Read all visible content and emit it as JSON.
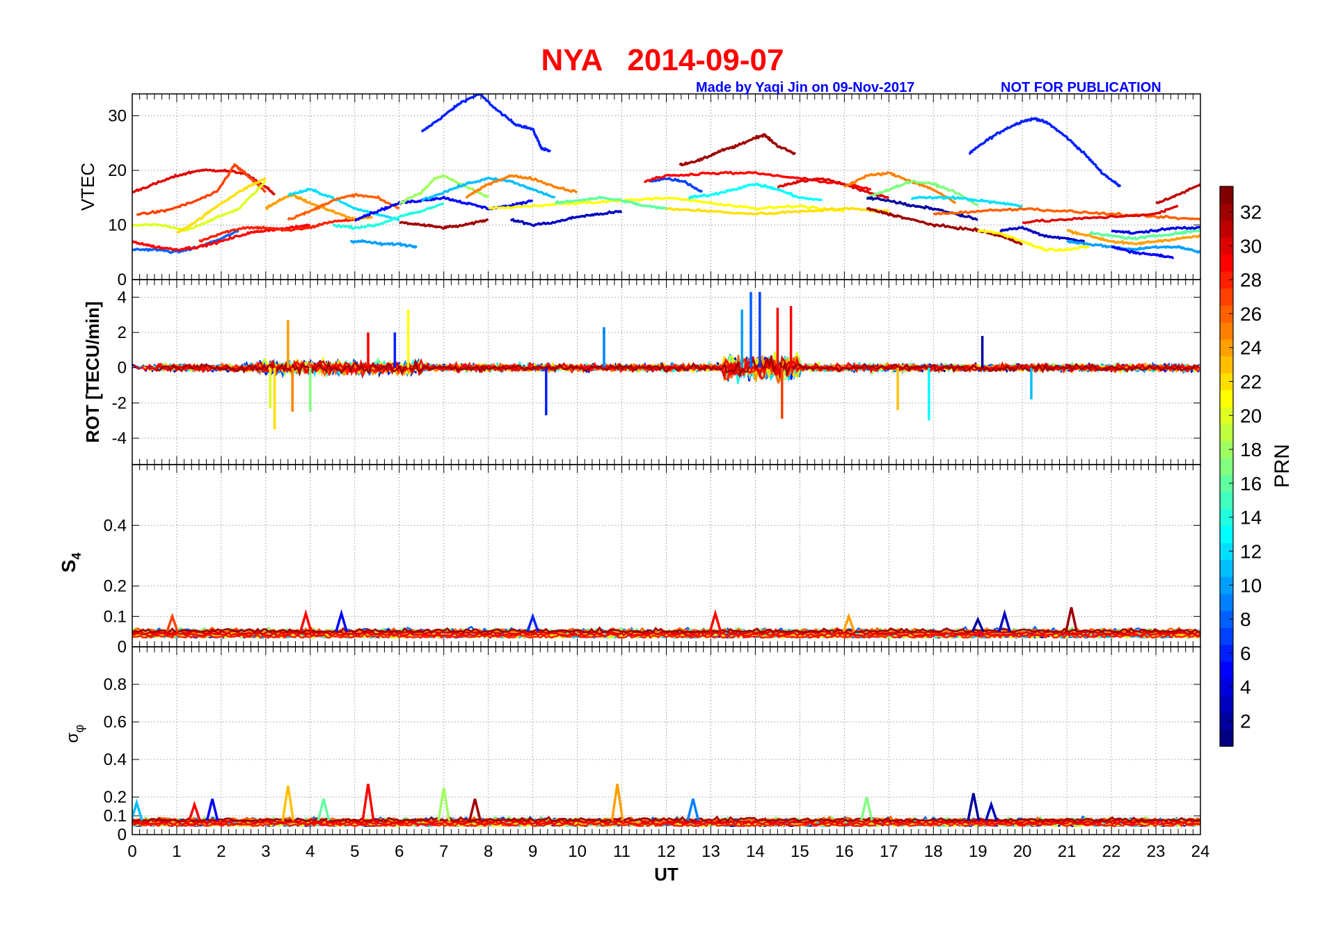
{
  "title": "NYA   2014-09-07",
  "credit": "Made by Yaqi Jin on 09-Nov-2017",
  "disclaimer": "NOT FOR PUBLICATION",
  "xlabel": "UT",
  "colorbar": {
    "label": "PRN",
    "ticks": [
      "2",
      "4",
      "6",
      "8",
      "10",
      "12",
      "14",
      "16",
      "18",
      "20",
      "22",
      "24",
      "26",
      "28",
      "30",
      "32"
    ],
    "range": [
      1,
      33
    ],
    "colormap": "jet"
  },
  "chart_data": [
    {
      "type": "line",
      "panel": "VTEC",
      "ylabel": "VTEC",
      "xlim": [
        0,
        24
      ],
      "ylim": [
        0,
        34
      ],
      "xticks": [
        "0",
        "1",
        "2",
        "3",
        "4",
        "5",
        "6",
        "7",
        "8",
        "9",
        "10",
        "11",
        "12",
        "13",
        "14",
        "15",
        "16",
        "17",
        "18",
        "19",
        "20",
        "21",
        "22",
        "23",
        "24"
      ],
      "yticks": [
        "0",
        "10",
        "20",
        "30"
      ],
      "grid": true,
      "series": [
        {
          "prn": 6,
          "x": [
            6.5,
            7.0,
            7.4,
            7.8,
            8.2,
            8.6,
            9.0,
            9.2,
            9.4
          ],
          "y": [
            27,
            30,
            32.5,
            34,
            31,
            28.5,
            27.5,
            24,
            23.5
          ]
        },
        {
          "prn": 6,
          "x": [
            18.8,
            19.2,
            19.6,
            20.0,
            20.3,
            20.6,
            21.0,
            21.4,
            21.8,
            22.2
          ],
          "y": [
            23,
            25.5,
            27.5,
            29,
            29.5,
            28.5,
            26,
            23,
            19.5,
            17
          ]
        },
        {
          "prn": 32,
          "x": [
            12.3,
            12.8,
            13.2,
            13.6,
            14.0,
            14.2,
            14.5,
            14.9
          ],
          "y": [
            21,
            22,
            23.5,
            24.5,
            26,
            26.5,
            24.5,
            23
          ]
        },
        {
          "prn": 30,
          "x": [
            0.0,
            0.5,
            1.0,
            1.5,
            2.0,
            2.5,
            3.0,
            3.2
          ],
          "y": [
            16,
            17.5,
            19,
            20,
            20,
            19.5,
            17,
            15.5
          ]
        },
        {
          "prn": 27,
          "x": [
            0.1,
            0.7,
            1.3,
            1.9,
            2.3,
            2.6,
            3.0
          ],
          "y": [
            12,
            12.5,
            14,
            16,
            21,
            19,
            16
          ]
        },
        {
          "prn": 20,
          "x": [
            0.0,
            0.6,
            1.2,
            1.8,
            2.4,
            3.0
          ],
          "y": [
            10,
            10,
            9,
            11,
            13,
            18
          ]
        },
        {
          "prn": 22,
          "x": [
            1.0,
            1.5,
            2.0,
            2.6,
            3.0
          ],
          "y": [
            8.5,
            11,
            14,
            17,
            18.5
          ]
        },
        {
          "prn": 8,
          "x": [
            0.0,
            0.5,
            1.0,
            1.5,
            2.0,
            2.4
          ],
          "y": [
            5.5,
            5.5,
            5,
            6,
            7.5,
            9
          ]
        },
        {
          "prn": 29,
          "x": [
            0.0,
            0.5,
            1.0,
            1.5,
            2.0,
            2.6,
            3.0,
            3.6,
            4.0
          ],
          "y": [
            7,
            6,
            5.5,
            6,
            7,
            8.5,
            9,
            9.5,
            10
          ]
        },
        {
          "prn": 28,
          "x": [
            1.5,
            2.0,
            2.5,
            3.0,
            3.5,
            4.0,
            4.4,
            5.0
          ],
          "y": [
            7,
            8.5,
            9.5,
            9.5,
            9,
            9.5,
            10.5,
            11
          ]
        },
        {
          "prn": 24,
          "x": [
            3.0,
            3.3,
            3.6,
            4.0,
            4.5,
            5.0,
            5.4
          ],
          "y": [
            13,
            14.5,
            15.5,
            14,
            12.5,
            11,
            11.5
          ]
        },
        {
          "prn": 12,
          "x": [
            3.5,
            4.0,
            4.5,
            5.0,
            5.5,
            6.0
          ],
          "y": [
            15.5,
            16.5,
            15,
            13,
            12,
            11
          ]
        },
        {
          "prn": 26,
          "x": [
            3.5,
            4.0,
            4.5,
            5.0,
            5.5,
            6.0
          ],
          "y": [
            11,
            12.5,
            14.5,
            15.5,
            15,
            13
          ]
        },
        {
          "prn": 14,
          "x": [
            4.5,
            5.0,
            5.5,
            6.0,
            6.5,
            7.0
          ],
          "y": [
            10,
            9.5,
            10,
            11.5,
            12.5,
            14
          ]
        },
        {
          "prn": 10,
          "x": [
            4.9,
            5.2,
            5.6,
            6.0,
            6.4
          ],
          "y": [
            7,
            7,
            6.5,
            6.5,
            6
          ]
        },
        {
          "prn": 5,
          "x": [
            5.0,
            5.5,
            6.0,
            6.5,
            7.0,
            7.5,
            8.0,
            8.5,
            9.0
          ],
          "y": [
            11,
            12.5,
            14,
            14.5,
            15,
            14,
            13,
            13.5,
            14.5
          ]
        },
        {
          "prn": 18,
          "x": [
            6.0,
            6.5,
            6.8,
            7.0,
            7.5,
            8.0
          ],
          "y": [
            14,
            16,
            18.5,
            19,
            17,
            15
          ]
        },
        {
          "prn": 32,
          "x": [
            6.0,
            6.5,
            7.0,
            7.5,
            8.0
          ],
          "y": [
            10.5,
            10,
            9.5,
            10,
            11
          ]
        },
        {
          "prn": 11,
          "x": [
            6.5,
            7.0,
            7.5,
            8.0,
            8.5,
            9.0,
            9.5
          ],
          "y": [
            14.5,
            16,
            17.5,
            18.5,
            18,
            16.5,
            15
          ]
        },
        {
          "prn": 25,
          "x": [
            7.5,
            8.0,
            8.5,
            9.0,
            9.5,
            10.0
          ],
          "y": [
            15,
            17.5,
            19,
            18.5,
            17,
            16
          ]
        },
        {
          "prn": 3,
          "x": [
            8.5,
            9.0,
            9.5,
            10.0,
            10.5,
            11.0
          ],
          "y": [
            11,
            10,
            10.5,
            11.5,
            12,
            12.5
          ]
        },
        {
          "prn": 21,
          "x": [
            8.0,
            9.0,
            10.0,
            11.0,
            12.0,
            13.0,
            14.0,
            15.0,
            16.0
          ],
          "y": [
            13,
            13.5,
            14,
            14.5,
            15,
            14,
            13,
            13.5,
            12.5
          ]
        },
        {
          "prn": 16,
          "x": [
            9.5,
            10.0,
            10.5,
            11.0,
            11.5,
            12.0
          ],
          "y": [
            14,
            14.5,
            15,
            14.5,
            13.5,
            13
          ]
        },
        {
          "prn": 7,
          "x": [
            11.6,
            12.0,
            12.4,
            12.8
          ],
          "y": [
            18,
            18.5,
            18,
            16
          ]
        },
        {
          "prn": 29,
          "x": [
            11.5,
            12.0,
            13.0,
            14.0,
            15.0,
            16.0,
            16.6
          ],
          "y": [
            18,
            19,
            19.5,
            19.5,
            18.5,
            17.5,
            16.5
          ]
        },
        {
          "prn": 13,
          "x": [
            12.5,
            13.0,
            13.5,
            14.0,
            14.5,
            15.0,
            15.5
          ],
          "y": [
            15,
            15.5,
            16.5,
            17.5,
            16.5,
            15,
            14.5
          ]
        },
        {
          "prn": 22,
          "x": [
            12.0,
            13.0,
            14.0,
            15.0,
            16.0,
            17.0
          ],
          "y": [
            13,
            12.5,
            12,
            12.5,
            13,
            12.5
          ]
        },
        {
          "prn": 30,
          "x": [
            14.5,
            15.0,
            15.5,
            16.0,
            16.5,
            17.0
          ],
          "y": [
            17,
            18,
            18.5,
            17.5,
            16,
            15
          ]
        },
        {
          "prn": 25,
          "x": [
            16.0,
            16.5,
            17.0,
            17.5,
            18.0,
            18.5
          ],
          "y": [
            17,
            19,
            19.5,
            18,
            16.5,
            14
          ]
        },
        {
          "prn": 17,
          "x": [
            16.5,
            17.0,
            17.5,
            18.0,
            18.5,
            19.0
          ],
          "y": [
            15,
            16.5,
            18,
            17.5,
            16,
            13.5
          ]
        },
        {
          "prn": 2,
          "x": [
            16.5,
            17.0,
            17.5,
            18.0,
            18.5,
            19.0
          ],
          "y": [
            15,
            14.5,
            13.5,
            13,
            12,
            11
          ]
        },
        {
          "prn": 32,
          "x": [
            16.5,
            17.0,
            17.5,
            18.0,
            18.5,
            19.0,
            19.5,
            20.0
          ],
          "y": [
            13,
            12,
            11,
            10,
            9.5,
            9,
            8,
            6.5
          ]
        },
        {
          "prn": 12,
          "x": [
            17.5,
            18.0,
            18.5,
            19.0,
            19.5,
            20.0
          ],
          "y": [
            15,
            15,
            15,
            14.5,
            14,
            13.5
          ]
        },
        {
          "prn": 26,
          "x": [
            18.0,
            19.0,
            20.0,
            21.0,
            22.0,
            23.0,
            24.0
          ],
          "y": [
            12,
            12.5,
            13,
            12.5,
            12,
            11.5,
            11
          ]
        },
        {
          "prn": 21,
          "x": [
            19.0,
            19.5,
            20.0,
            20.5,
            21.0,
            21.5
          ],
          "y": [
            9,
            8.5,
            7,
            5.5,
            5.5,
            6
          ]
        },
        {
          "prn": 3,
          "x": [
            19.5,
            20.0,
            20.5,
            21.0,
            21.4
          ],
          "y": [
            9,
            9.5,
            8,
            7.5,
            7
          ]
        },
        {
          "prn": 30,
          "x": [
            20.0,
            21.0,
            22.0,
            23.0,
            23.5
          ],
          "y": [
            10.5,
            11,
            11.5,
            12,
            13.5
          ]
        },
        {
          "prn": 31,
          "x": [
            23.0,
            23.5,
            24.0
          ],
          "y": [
            14,
            15.5,
            17.5
          ]
        },
        {
          "prn": 4,
          "x": [
            22.0,
            22.5,
            23.0,
            23.5,
            24.0
          ],
          "y": [
            9,
            8.5,
            9,
            9.5,
            9.5
          ]
        },
        {
          "prn": 16,
          "x": [
            21.5,
            22.0,
            22.5,
            23.0,
            23.5,
            24.0
          ],
          "y": [
            8.5,
            8,
            7.5,
            8,
            8.5,
            9
          ]
        },
        {
          "prn": 10,
          "x": [
            21.0,
            21.5,
            22.0,
            22.5,
            23.0,
            23.5,
            24.0
          ],
          "y": [
            7,
            6.5,
            6,
            5.5,
            6,
            6,
            5
          ]
        },
        {
          "prn": 5,
          "x": [
            22.0,
            22.5,
            23.0,
            23.4
          ],
          "y": [
            6,
            5,
            4.5,
            4
          ]
        },
        {
          "prn": 24,
          "x": [
            21.0,
            21.5,
            22.0,
            22.5,
            23.0,
            23.5,
            24.0
          ],
          "y": [
            9,
            8,
            7,
            6.5,
            7,
            7.5,
            8
          ]
        }
      ]
    },
    {
      "type": "line",
      "panel": "ROT",
      "ylabel": "ROT [TECU/min]",
      "xlim": [
        0,
        24
      ],
      "ylim": [
        -5.5,
        5
      ],
      "yticks": [
        "-4",
        "-2",
        "0",
        "2",
        "4"
      ],
      "grid": true,
      "spikes": [
        {
          "prn": 22,
          "x": 3.2,
          "y": -3.5
        },
        {
          "prn": 24,
          "x": 3.5,
          "y": 2.7
        },
        {
          "prn": 25,
          "x": 3.6,
          "y": -2.5
        },
        {
          "prn": 20,
          "x": 3.1,
          "y": -2.3
        },
        {
          "prn": 17,
          "x": 4.0,
          "y": -2.5
        },
        {
          "prn": 29,
          "x": 5.3,
          "y": 2.0
        },
        {
          "prn": 6,
          "x": 5.9,
          "y": 2.0
        },
        {
          "prn": 21,
          "x": 6.2,
          "y": 3.3
        },
        {
          "prn": 6,
          "x": 9.3,
          "y": -2.7
        },
        {
          "prn": 9,
          "x": 10.6,
          "y": 2.3
        },
        {
          "prn": 8,
          "x": 13.9,
          "y": 4.3
        },
        {
          "prn": 10,
          "x": 13.7,
          "y": 3.3
        },
        {
          "prn": 7,
          "x": 14.1,
          "y": 4.3
        },
        {
          "prn": 29,
          "x": 14.8,
          "y": 3.5
        },
        {
          "prn": 27,
          "x": 14.6,
          "y": -2.9
        },
        {
          "prn": 29,
          "x": 14.5,
          "y": 3.4
        },
        {
          "prn": 2,
          "x": 19.1,
          "y": 1.8
        },
        {
          "prn": 23,
          "x": 17.2,
          "y": -2.4
        },
        {
          "prn": 13,
          "x": 17.9,
          "y": -3.0
        },
        {
          "prn": 11,
          "x": 20.2,
          "y": -1.8
        }
      ]
    },
    {
      "type": "line",
      "panel": "S4",
      "ylabel": "S4",
      "xlim": [
        0,
        24
      ],
      "ylim": [
        0,
        0.6
      ],
      "yticks": [
        "0",
        "0.1",
        "0.2",
        "0.4"
      ],
      "grid": true,
      "peaks": [
        {
          "prn": 27,
          "x": 0.9,
          "y": 0.1
        },
        {
          "prn": 29,
          "x": 3.9,
          "y": 0.11
        },
        {
          "prn": 5,
          "x": 4.7,
          "y": 0.11
        },
        {
          "prn": 6,
          "x": 9.0,
          "y": 0.1
        },
        {
          "prn": 29,
          "x": 13.1,
          "y": 0.11
        },
        {
          "prn": 24,
          "x": 16.1,
          "y": 0.1
        },
        {
          "prn": 2,
          "x": 19.0,
          "y": 0.09
        },
        {
          "prn": 3,
          "x": 19.6,
          "y": 0.11
        },
        {
          "prn": 32,
          "x": 21.1,
          "y": 0.13
        }
      ]
    },
    {
      "type": "line",
      "panel": "sigma_phi",
      "ylabel": "σφ",
      "xlim": [
        0,
        24
      ],
      "ylim": [
        0,
        1.0
      ],
      "yticks": [
        "0",
        "0.1",
        "0.2",
        "0.4",
        "0.6",
        "0.8"
      ],
      "grid": true,
      "peaks": [
        {
          "prn": 11,
          "x": 0.1,
          "y": 0.17
        },
        {
          "prn": 29,
          "x": 1.4,
          "y": 0.16
        },
        {
          "prn": 5,
          "x": 1.8,
          "y": 0.19
        },
        {
          "prn": 23,
          "x": 3.5,
          "y": 0.26
        },
        {
          "prn": 16,
          "x": 4.3,
          "y": 0.19
        },
        {
          "prn": 29,
          "x": 5.3,
          "y": 0.27
        },
        {
          "prn": 18,
          "x": 7.0,
          "y": 0.25
        },
        {
          "prn": 32,
          "x": 7.7,
          "y": 0.19
        },
        {
          "prn": 24,
          "x": 10.9,
          "y": 0.27
        },
        {
          "prn": 9,
          "x": 12.6,
          "y": 0.19
        },
        {
          "prn": 17,
          "x": 16.5,
          "y": 0.2
        },
        {
          "prn": 2,
          "x": 18.9,
          "y": 0.22
        },
        {
          "prn": 3,
          "x": 19.3,
          "y": 0.16
        }
      ]
    }
  ]
}
